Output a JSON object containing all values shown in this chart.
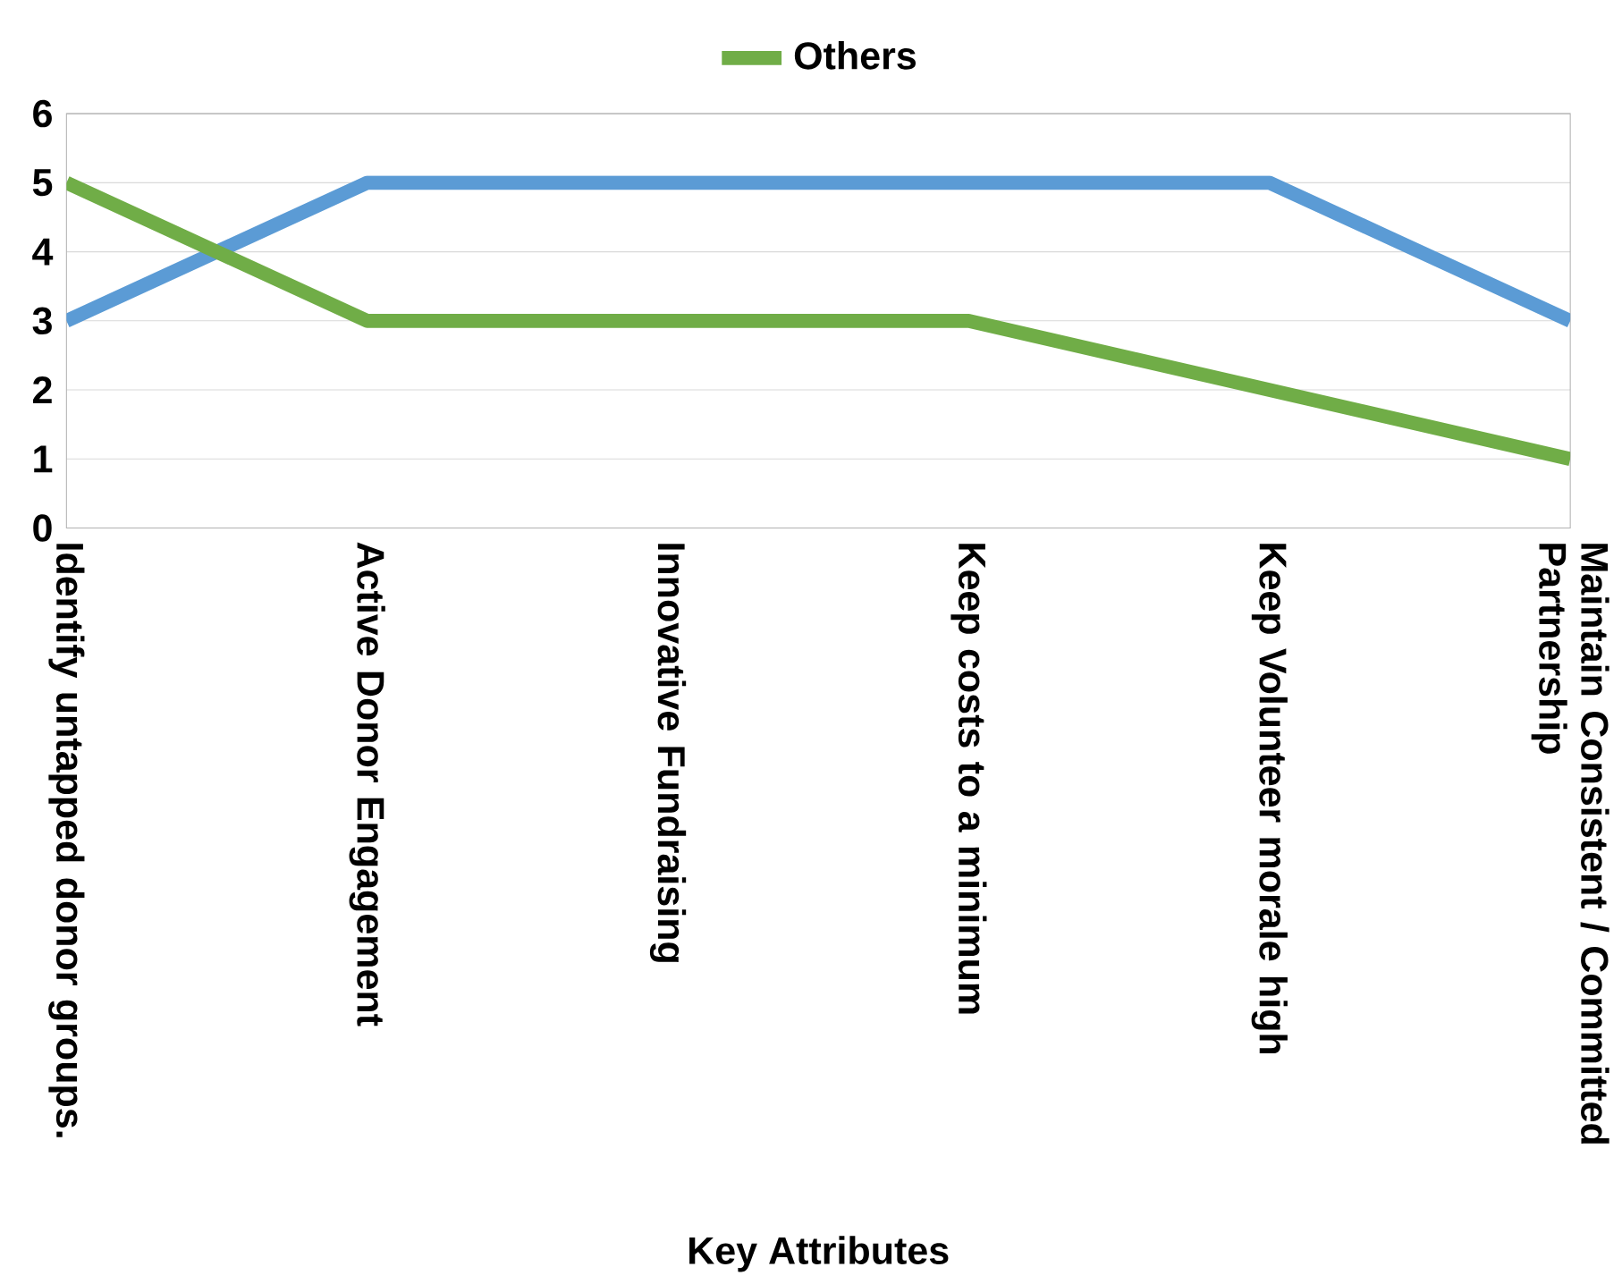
{
  "chart_data": {
    "type": "line",
    "xlabel": "Key Attributes",
    "categories": [
      "Identify untapped donor groups.",
      "Active Donor Engagement",
      "Innovative Fundraising",
      "Keep costs to a minimum",
      "Keep Volunteer morale high",
      "Maintain Consistent / Committed Partnership"
    ],
    "series": [
      {
        "color": "#5b9bd5",
        "values": [
          3,
          5,
          5,
          5,
          5,
          3
        ]
      },
      {
        "name": "Others",
        "color": "#70ad47",
        "values": [
          5,
          3,
          3,
          3,
          2,
          1
        ]
      }
    ],
    "ylim": [
      0,
      6
    ],
    "yticks": [
      0,
      1,
      2,
      3,
      4,
      5,
      6
    ],
    "grid": "y",
    "legend": "top",
    "marker": "none",
    "line_style": "solid"
  }
}
